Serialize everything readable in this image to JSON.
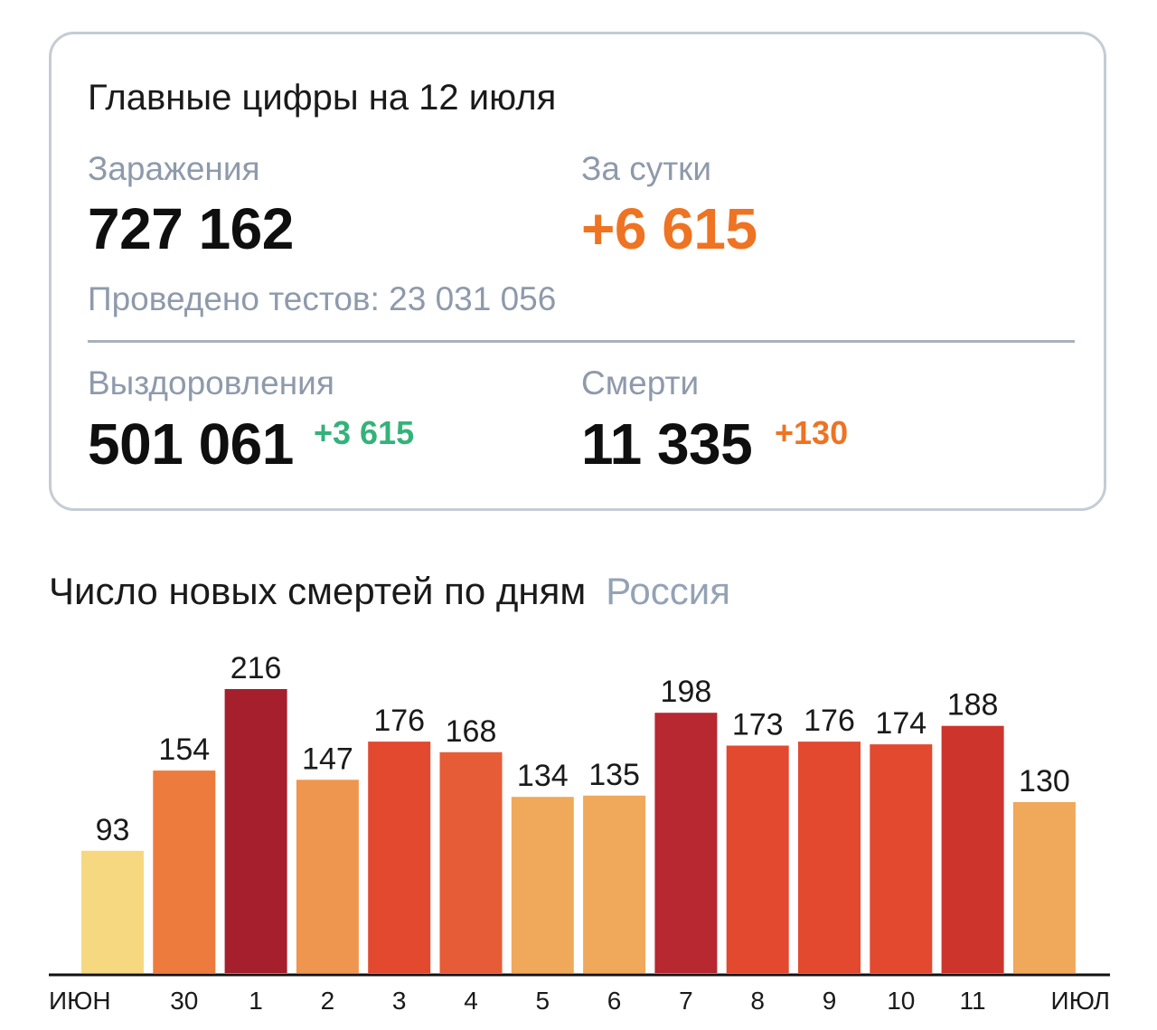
{
  "summary": {
    "title": "Главные цифры на 12 июля",
    "infections_label": "Заражения",
    "infections_value": "727 162",
    "daily_label": "За сутки",
    "daily_value": "+6 615",
    "tests_text": "Проведено тестов: 23 031 056",
    "recoveries_label": "Выздоровления",
    "recoveries_value": "501 061",
    "recoveries_delta": "+3 615",
    "deaths_label": "Смерти",
    "deaths_value": "11 335",
    "deaths_delta": "+130"
  },
  "colors": {
    "accent_orange": "#ee7322",
    "accent_green": "#34b27a",
    "label_gray": "#8e9aab",
    "weekend_tick": "#e0452d"
  },
  "chart_data": {
    "type": "bar",
    "title": "Число новых смертей по дням",
    "subtitle": "Россия",
    "categories": [
      "",
      "30",
      "1",
      "2",
      "3",
      "4",
      "5",
      "6",
      "7",
      "8",
      "9",
      "10",
      "11",
      ""
    ],
    "values": [
      93,
      154,
      216,
      147,
      176,
      168,
      134,
      135,
      198,
      173,
      176,
      174,
      188,
      130
    ],
    "bar_colors": [
      "#f6d881",
      "#ec7b3d",
      "#a51f2c",
      "#ee9650",
      "#e2492f",
      "#e65c36",
      "#f0a85a",
      "#f0a85a",
      "#b72830",
      "#e2492f",
      "#e2492f",
      "#e2492f",
      "#cd342c",
      "#f0a85a"
    ],
    "tick_labels": [
      "ИЮН",
      "30",
      "1",
      "2",
      "3",
      "4",
      "5",
      "6",
      "7",
      "8",
      "9",
      "10",
      "11",
      "ИЮЛ"
    ],
    "tick_colors": [
      "#1a1a1a",
      "#1a1a1a",
      "#1a1a1a",
      "#1a1a1a",
      "#1a1a1a",
      "#e0452d",
      "#e0452d",
      "#1a1a1a",
      "#1a1a1a",
      "#1a1a1a",
      "#1a1a1a",
      "#1a1a1a",
      "#e0452d",
      "#1a1a1a"
    ],
    "ylim": [
      0,
      216
    ],
    "grid": false
  }
}
